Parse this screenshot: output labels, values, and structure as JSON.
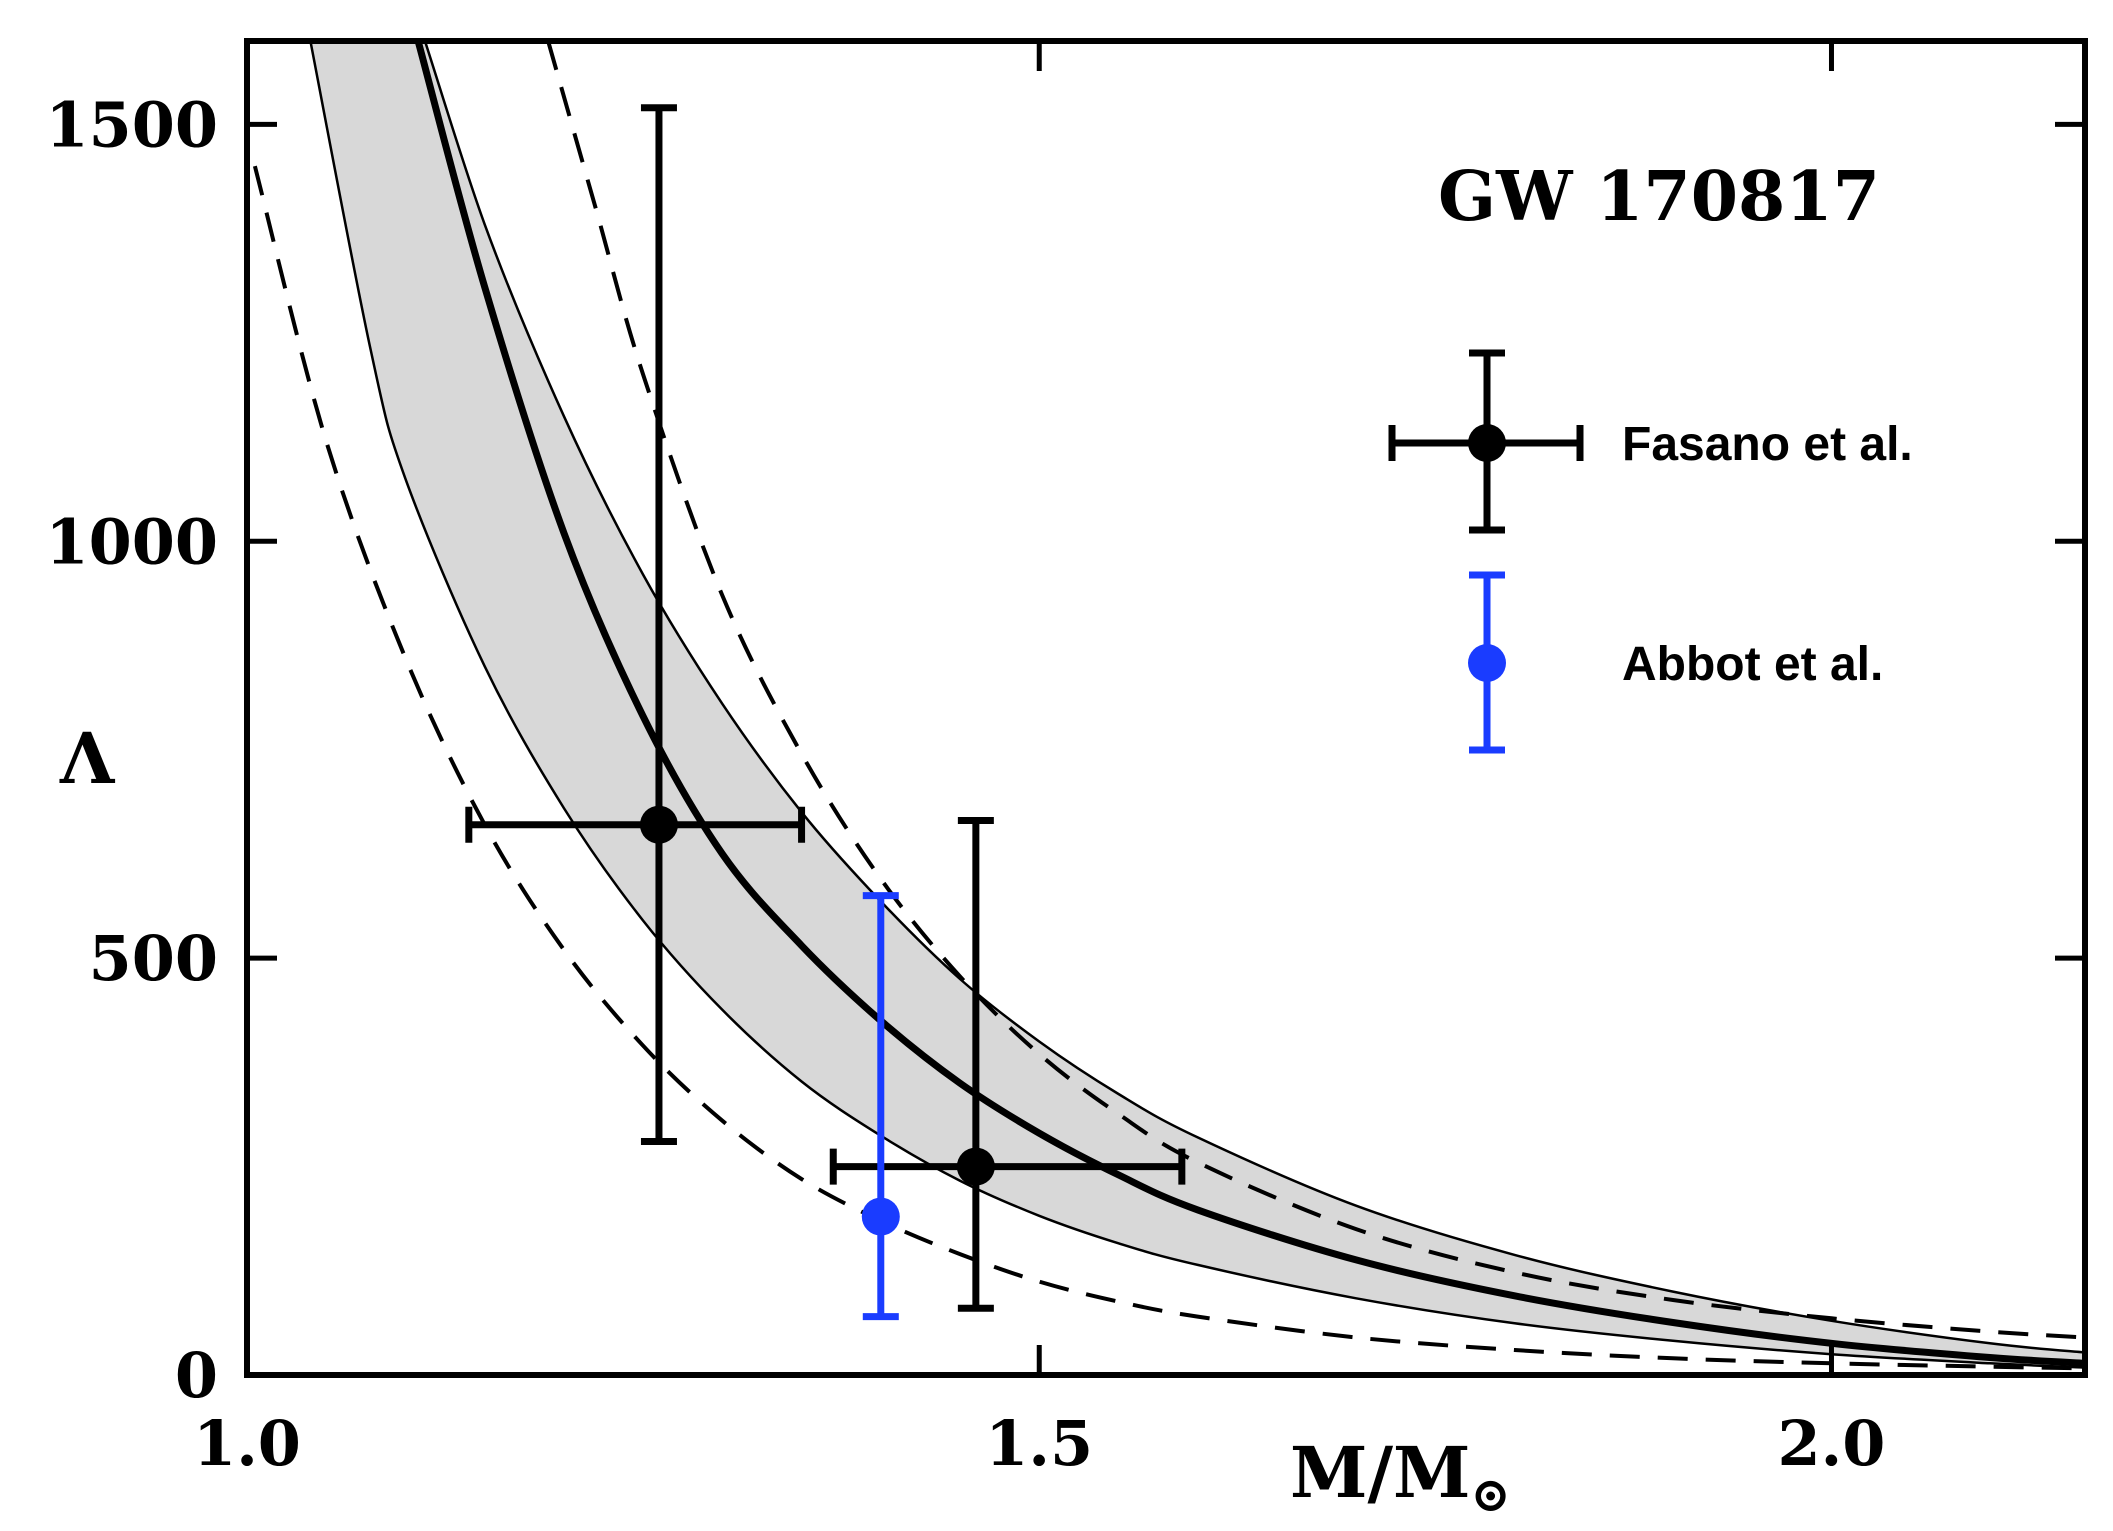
{
  "chart_data": {
    "type": "line",
    "title": "GW 170817",
    "xlabel": "M/M",
    "xlabel_subscript": "⊙",
    "ylabel": "Λ",
    "xlim": [
      1.0,
      2.16
    ],
    "ylim": [
      0,
      1600
    ],
    "x_ticks": [
      1.0,
      1.5,
      2.0
    ],
    "x_tick_labels": [
      "1.0",
      "1.5",
      "2.0"
    ],
    "y_ticks": [
      0,
      500,
      1000,
      1500
    ],
    "y_tick_labels": [
      "0",
      "500",
      "1000",
      "1500"
    ],
    "grid": false,
    "legend_position": "top-right",
    "band": {
      "x": [
        1.04,
        1.078,
        1.1,
        1.15,
        1.2,
        1.25,
        1.3,
        1.35,
        1.4,
        1.45,
        1.5,
        1.55,
        1.6,
        1.7,
        1.8,
        1.9,
        2.0,
        2.1,
        2.16
      ],
      "lower": [
        1600,
        1230,
        1075,
        850,
        680,
        545,
        438,
        352,
        287,
        233,
        191,
        158,
        132,
        92,
        62,
        41,
        25,
        14,
        9
      ],
      "upper": [
        1750,
        1750,
        1670,
        1380,
        1150,
        960,
        805,
        675,
        568,
        475,
        400,
        337,
        285,
        203,
        144,
        100,
        65,
        38,
        27
      ]
    },
    "series": [
      {
        "kind": "central-curve",
        "x": [
          1.108,
          1.15,
          1.2,
          1.25,
          1.3,
          1.35,
          1.4,
          1.45,
          1.5,
          1.55,
          1.6,
          1.7,
          1.8,
          1.9,
          2.0,
          2.1,
          2.16
        ],
        "y": [
          1600,
          1305,
          1010,
          790,
          625,
          515,
          425,
          350,
          290,
          240,
          198,
          138,
          95,
          63,
          38,
          21,
          14
        ]
      },
      {
        "kind": "dashed-upper",
        "x": [
          1.19,
          1.22,
          1.25,
          1.3,
          1.35,
          1.4,
          1.45,
          1.5,
          1.55,
          1.6,
          1.7,
          1.8,
          1.9,
          2.0,
          2.1,
          2.16
        ],
        "y": [
          1600,
          1400,
          1200,
          935,
          745,
          595,
          478,
          385,
          313,
          255,
          175,
          123,
          90,
          68,
          52,
          45
        ]
      },
      {
        "kind": "dashed-lower",
        "x": [
          1.005,
          1.05,
          1.1,
          1.15,
          1.2,
          1.25,
          1.3,
          1.35,
          1.4,
          1.45,
          1.5,
          1.55,
          1.6,
          1.7,
          1.8,
          1.9,
          2.0,
          2.1,
          2.16
        ],
        "y": [
          1450,
          1120,
          860,
          660,
          510,
          395,
          305,
          235,
          185,
          145,
          112,
          88,
          70,
          45,
          30,
          20,
          14,
          10,
          8
        ]
      }
    ],
    "points": [
      {
        "group": "Fasano et al.",
        "x": 1.26,
        "y": 660,
        "x_err": [
          1.14,
          1.35
        ],
        "y_err": [
          280,
          1520
        ],
        "color": "#000000"
      },
      {
        "group": "Fasano et al.",
        "x": 1.46,
        "y": 250,
        "x_err": [
          1.37,
          1.59
        ],
        "y_err": [
          80,
          665
        ],
        "color": "#000000"
      },
      {
        "group": "Abbot et al.",
        "x": 1.4,
        "y": 190,
        "y_err": [
          70,
          575
        ],
        "color": "#1a3cff"
      }
    ],
    "legend": [
      {
        "label": "Fasano et al.",
        "color": "#000000",
        "marker": "point-with-xy-errorbars"
      },
      {
        "label": "Abbot et al.",
        "color": "#1a3cff",
        "marker": "point-with-y-errorbars"
      }
    ],
    "colors": {
      "band_fill": "#d8d8d8",
      "black": "#000000",
      "blue": "#1a3cff"
    }
  }
}
